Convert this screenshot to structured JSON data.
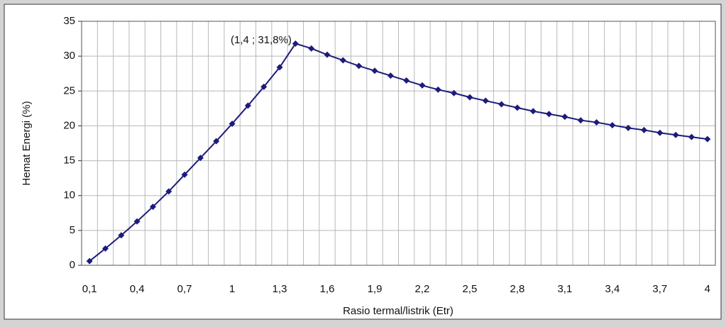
{
  "chart_data": {
    "type": "line",
    "y_label": "Hemat Energi (%)",
    "x_label": "Rasio termal/listrik (Etr)",
    "annotation": "(1,4 ; 31,8%)",
    "categories": [
      "0,1",
      null,
      null,
      "0,4",
      null,
      null,
      "0,7",
      null,
      null,
      "1",
      null,
      null,
      "1,3",
      null,
      null,
      "1,6",
      null,
      null,
      "1,9",
      null,
      null,
      "2,2",
      null,
      null,
      "2,5",
      null,
      null,
      "2,8",
      null,
      null,
      "3,1",
      null,
      null,
      "3,4",
      null,
      null,
      "3,7",
      null,
      null,
      "4"
    ],
    "values": [
      0.6,
      2.4,
      4.3,
      6.3,
      8.4,
      10.6,
      13.0,
      15.4,
      17.8,
      20.3,
      22.9,
      25.6,
      28.4,
      31.8,
      31.1,
      30.2,
      29.4,
      28.6,
      27.9,
      27.2,
      26.5,
      25.8,
      25.2,
      24.7,
      24.1,
      23.6,
      23.1,
      22.6,
      22.1,
      21.7,
      21.3,
      20.8,
      20.5,
      20.1,
      19.7,
      19.4,
      19.0,
      18.7,
      18.4,
      18.1
    ],
    "color": "#1c1c7c",
    "ylim": [
      0,
      35
    ],
    "yticks": [
      0,
      5,
      10,
      15,
      20,
      25,
      30,
      35
    ],
    "grid": true
  }
}
